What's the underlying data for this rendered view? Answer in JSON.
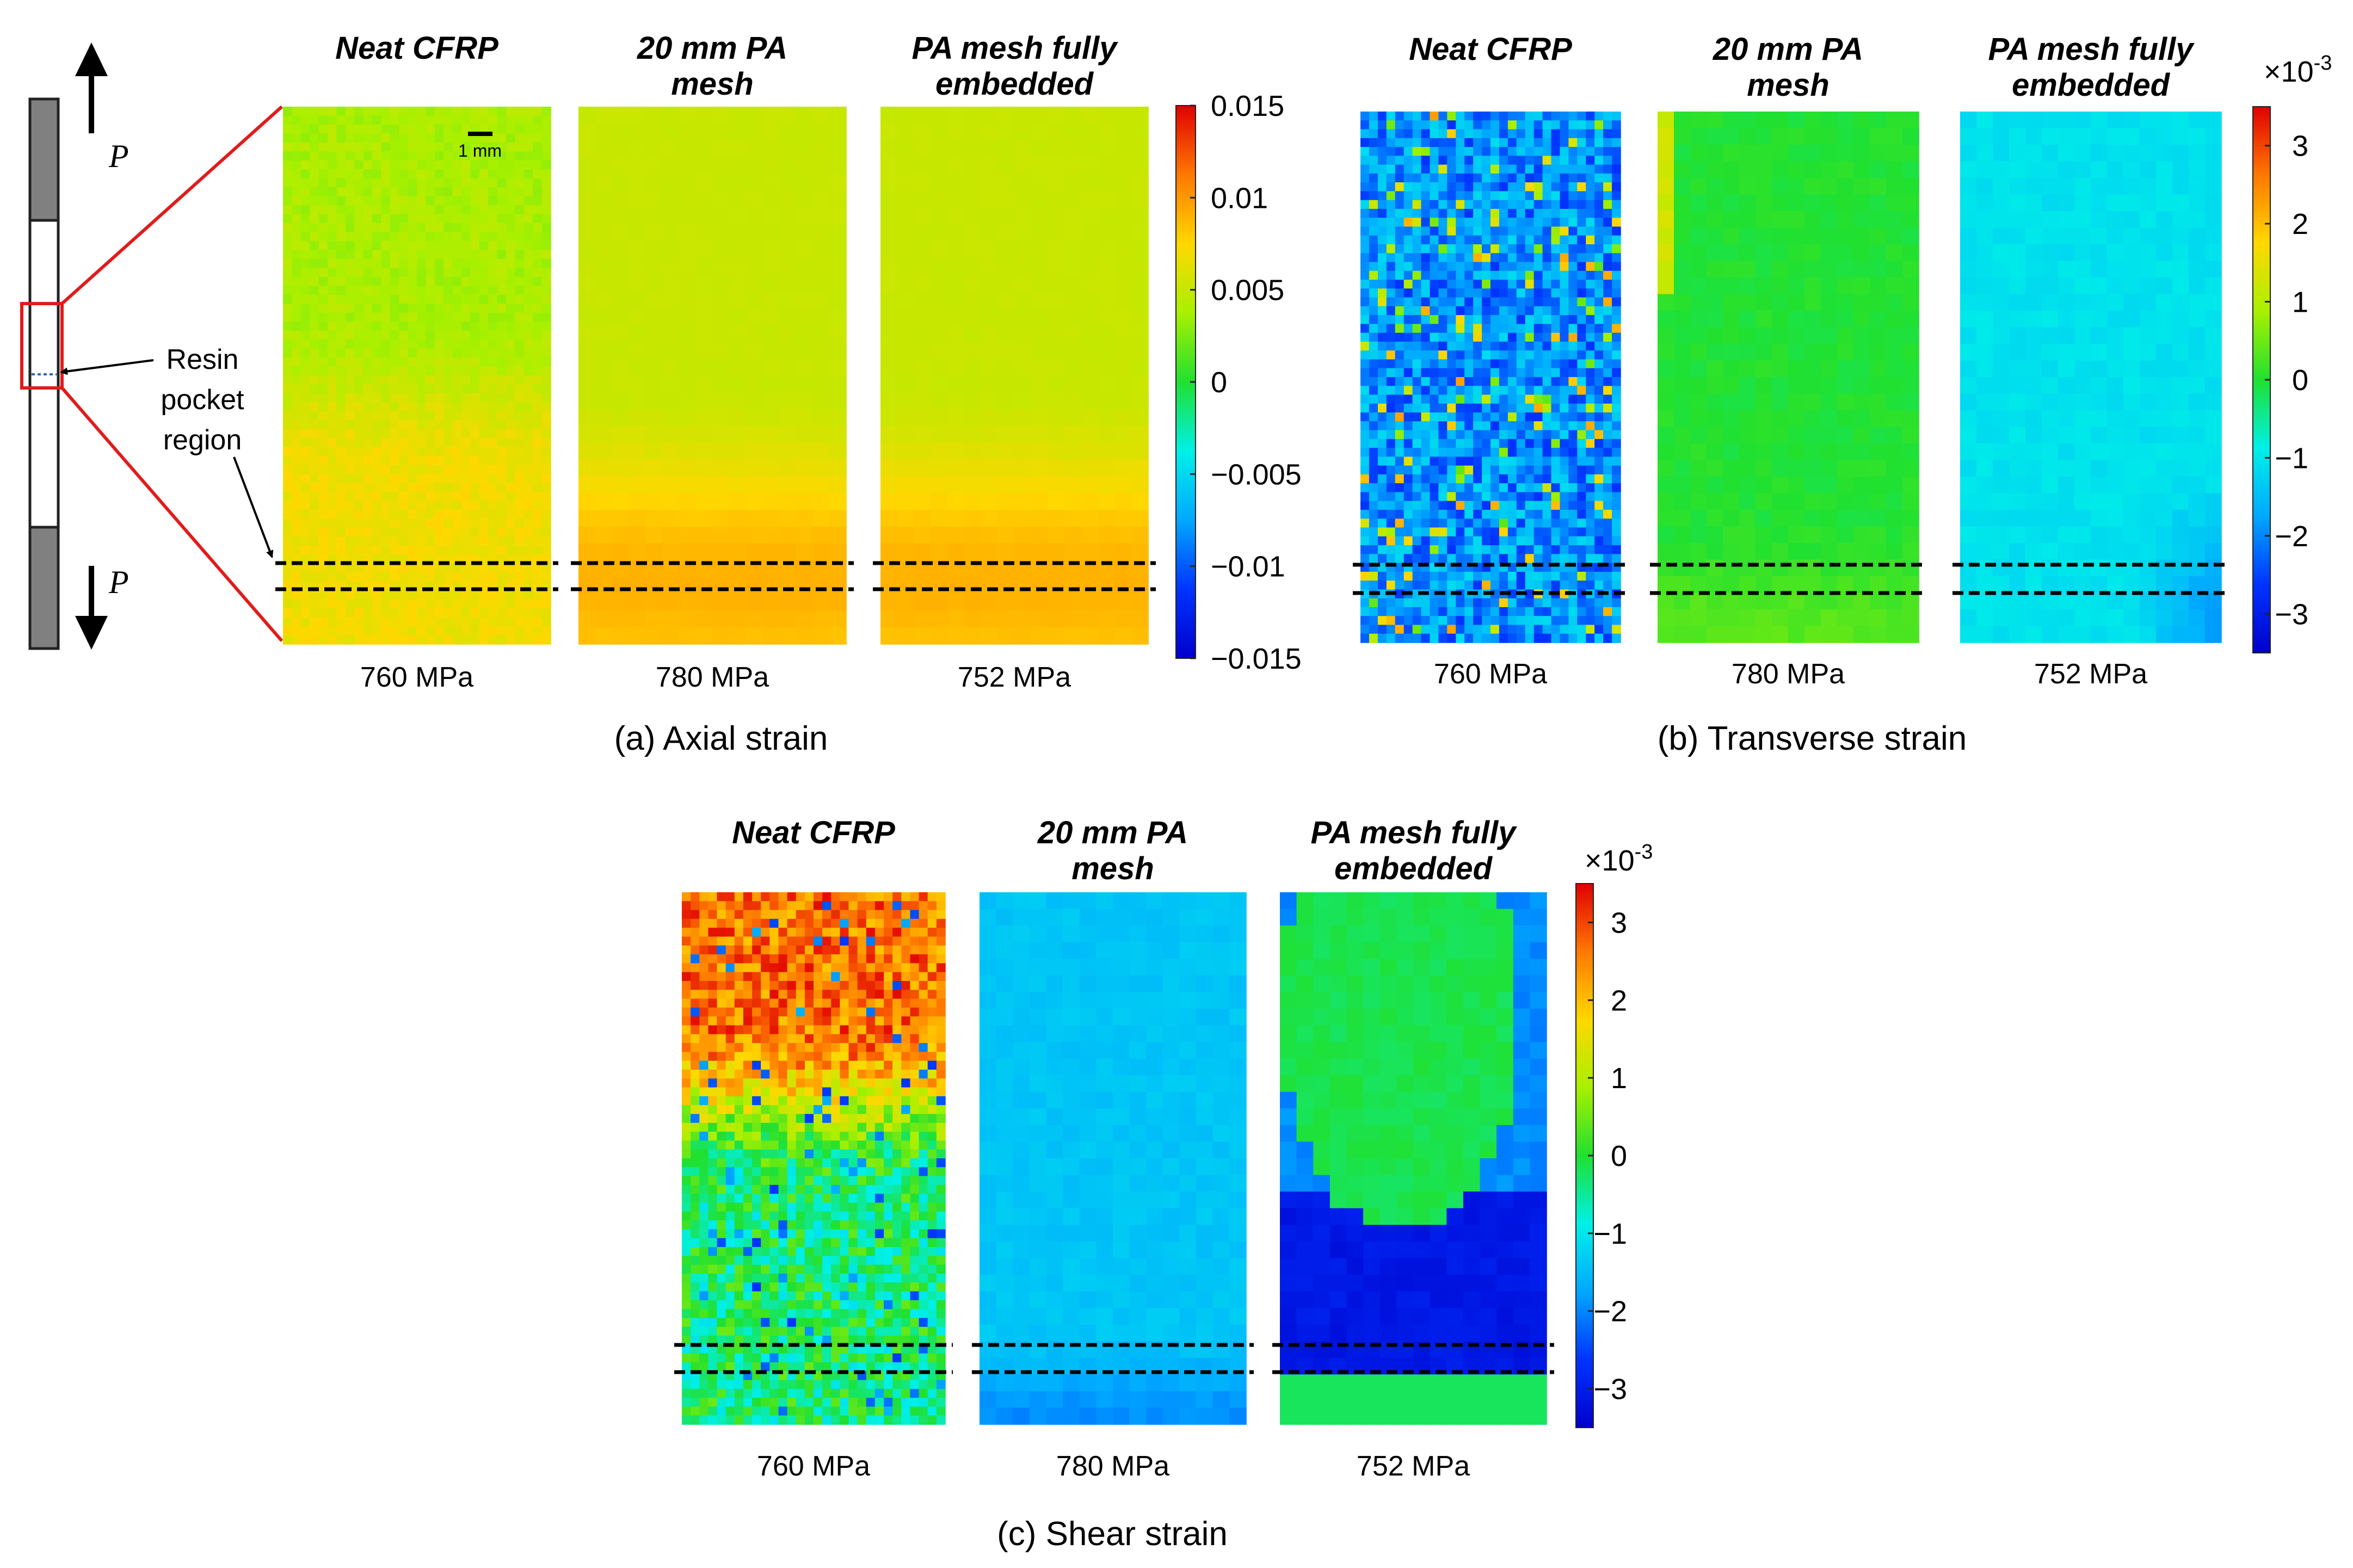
{
  "figure": {
    "resin_label": [
      "Resin",
      "pocket",
      "region"
    ],
    "load_symbol": "P",
    "scale_bar": "1 mm"
  },
  "panels": [
    {
      "id": "a",
      "caption": "(a) Axial strain",
      "colorbar": {
        "ticks": [
          "0.015",
          "0.01",
          "0.005",
          "0",
          "−0.005",
          "−0.01",
          "−0.015"
        ],
        "multiplier": "",
        "min": -0.015,
        "max": 0.015
      },
      "maps": [
        {
          "title": [
            "Neat CFRP"
          ],
          "stress": "760 MPa",
          "pattern": "neat_axial"
        },
        {
          "title": [
            "20 mm PA",
            "mesh"
          ],
          "stress": "780 MPa",
          "pattern": "pa_axial"
        },
        {
          "title": [
            "PA mesh fully",
            "embedded"
          ],
          "stress": "752 MPa",
          "pattern": "pa_axial"
        }
      ]
    },
    {
      "id": "b",
      "caption": "(b) Transverse strain",
      "colorbar": {
        "ticks": [
          "3",
          "2",
          "1",
          "0",
          "−1",
          "−2",
          "−3"
        ],
        "multiplier": "×10",
        "exponent": "-3",
        "min": -3.5,
        "max": 3.5
      },
      "maps": [
        {
          "title": [
            "Neat CFRP"
          ],
          "stress": "760 MPa",
          "pattern": "neat_trans"
        },
        {
          "title": [
            "20 mm PA",
            "mesh"
          ],
          "stress": "780 MPa",
          "pattern": "pa20_trans"
        },
        {
          "title": [
            "PA mesh fully",
            "embedded"
          ],
          "stress": "752 MPa",
          "pattern": "full_trans"
        }
      ]
    },
    {
      "id": "c",
      "caption": "(c) Shear strain",
      "colorbar": {
        "ticks": [
          "3",
          "2",
          "1",
          "0",
          "−1",
          "−2",
          "−3"
        ],
        "multiplier": "×10",
        "exponent": "-3",
        "min": -3.5,
        "max": 3.5
      },
      "maps": [
        {
          "title": [
            "Neat CFRP"
          ],
          "stress": "760 MPa",
          "pattern": "neat_shear"
        },
        {
          "title": [
            "20 mm PA",
            "mesh"
          ],
          "stress": "780 MPa",
          "pattern": "pa20_shear"
        },
        {
          "title": [
            "PA mesh fully",
            "embedded"
          ],
          "stress": "752 MPa",
          "pattern": "full_shear"
        }
      ]
    }
  ]
}
